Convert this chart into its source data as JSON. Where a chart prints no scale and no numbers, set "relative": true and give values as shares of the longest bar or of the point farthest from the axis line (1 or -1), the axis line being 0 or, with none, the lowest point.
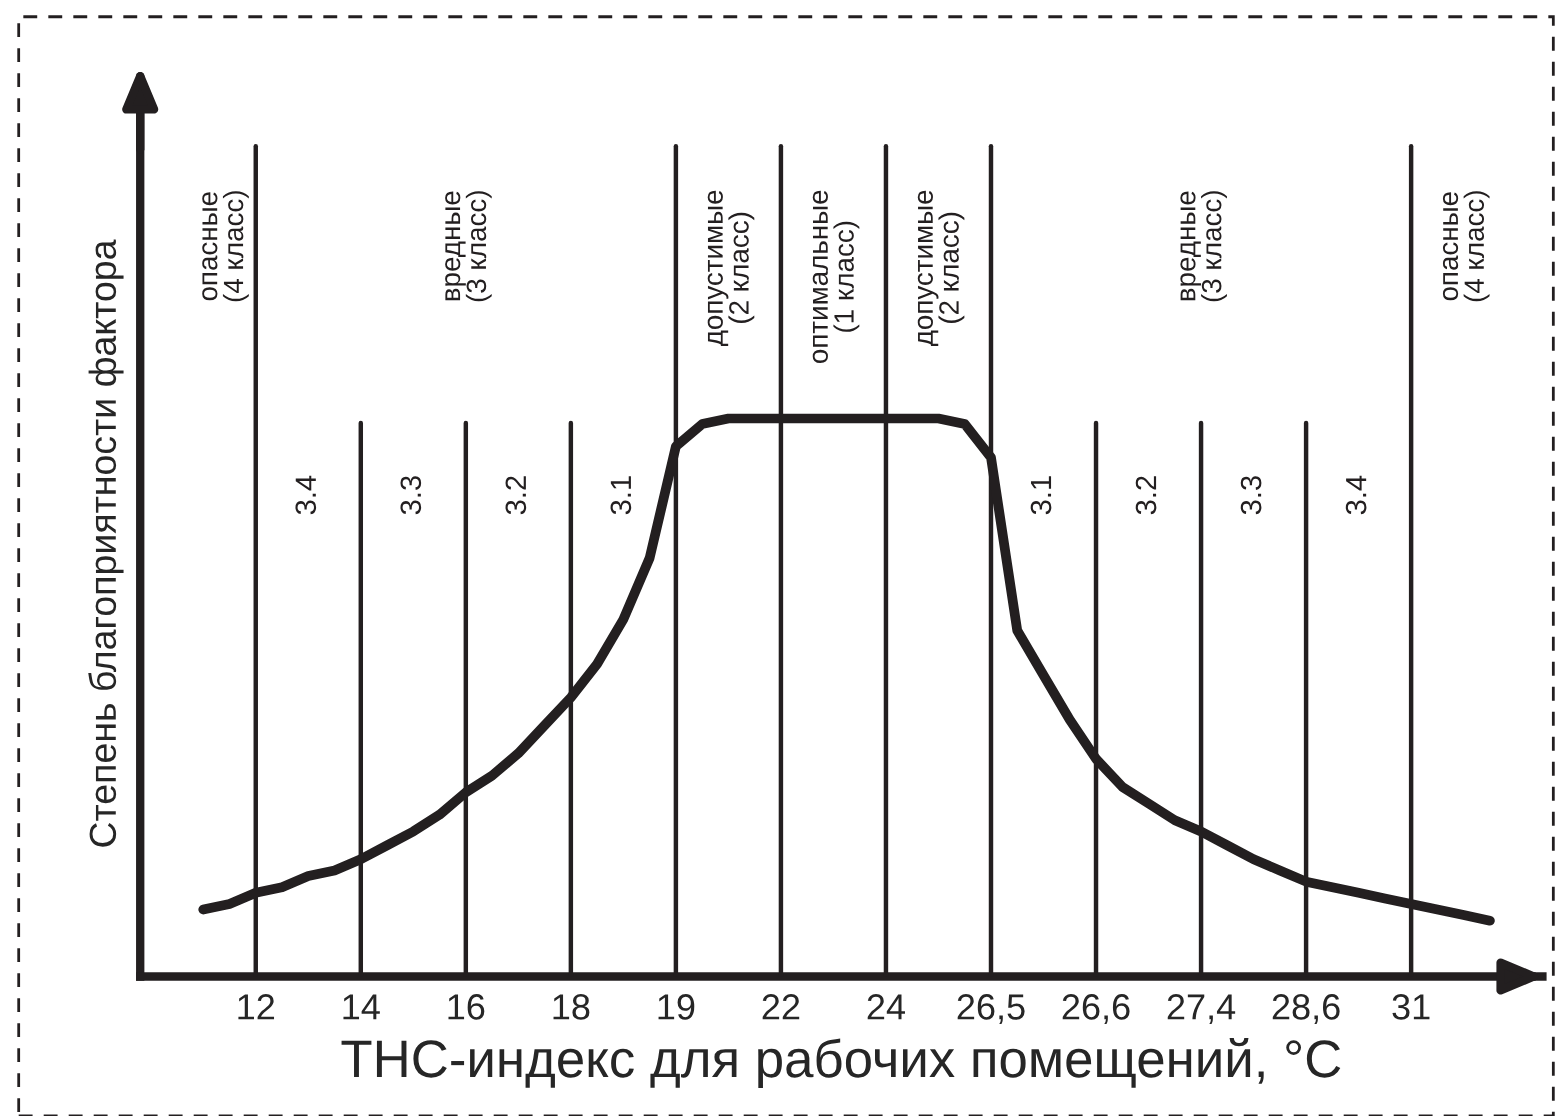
{
  "chart_data": {
    "type": "line",
    "relative": true,
    "xlabel": "ТНС-индекс для рабочих помещений, °С",
    "ylabel": "Степень благоприятности фактора",
    "categories": [
      null,
      null,
      "12",
      null,
      null,
      null,
      "14",
      null,
      null,
      null,
      "16",
      null,
      null,
      null,
      "18",
      null,
      null,
      null,
      "19",
      null,
      null,
      null,
      "22",
      null,
      null,
      null,
      "24",
      null,
      null,
      null,
      "26,5",
      null,
      null,
      null,
      "26,6",
      null,
      null,
      null,
      "27,4",
      null,
      null,
      null,
      "28,6",
      null,
      null,
      null,
      "31",
      null,
      null,
      null
    ],
    "series": [
      {
        "color": "#231f20",
        "values": [
          0.12,
          0.13,
          0.15,
          0.16,
          0.18,
          0.19,
          0.21,
          0.235,
          0.26,
          0.29,
          0.33,
          0.36,
          0.4,
          0.45,
          0.5,
          0.56,
          0.64,
          0.75,
          0.95,
          0.99,
          1.0,
          1.0,
          1.0,
          1.0,
          1.0,
          1.0,
          1.0,
          1.0,
          1.0,
          0.99,
          0.93,
          0.62,
          0.54,
          0.46,
          0.39,
          0.34,
          0.31,
          0.28,
          0.26,
          0.235,
          0.21,
          0.19,
          0.17,
          0.16,
          0.15,
          0.14,
          0.13,
          0.12,
          0.11,
          0.1
        ]
      }
    ],
    "ref_lines": [
      {
        "axis": "x",
        "value": "12",
        "color": "#231f20"
      },
      {
        "axis": "x",
        "value": "14",
        "color": "#231f20"
      },
      {
        "axis": "x",
        "value": "16",
        "color": "#231f20"
      },
      {
        "axis": "x",
        "value": "18",
        "color": "#231f20"
      },
      {
        "axis": "x",
        "value": "19",
        "color": "#231f20"
      },
      {
        "axis": "x",
        "value": "22",
        "color": "#231f20"
      },
      {
        "axis": "x",
        "value": "24",
        "color": "#231f20"
      },
      {
        "axis": "x",
        "value": "26,5",
        "color": "#231f20"
      },
      {
        "axis": "x",
        "value": "26,6",
        "color": "#231f20"
      },
      {
        "axis": "x",
        "value": "27,4",
        "color": "#231f20"
      },
      {
        "axis": "x",
        "value": "28,6",
        "color": "#231f20"
      },
      {
        "axis": "x",
        "value": "31",
        "color": "#231f20"
      }
    ],
    "annotations": [
      "опасные\n(4 класс)",
      "вредные\n(3 класс)",
      "допустимые\n(2 класс)",
      "оптимальные\n(1 класс)",
      "допустимые\n(2 класс)",
      "вредные\n(3 класс)",
      "опасные\n(4 класс)",
      "3.4",
      "3.3",
      "3.2",
      "3.1",
      "3.1",
      "3.2",
      "3.3",
      "3.4"
    ],
    "grid": false,
    "legend": false,
    "marker": "none",
    "line_style": "solid"
  }
}
